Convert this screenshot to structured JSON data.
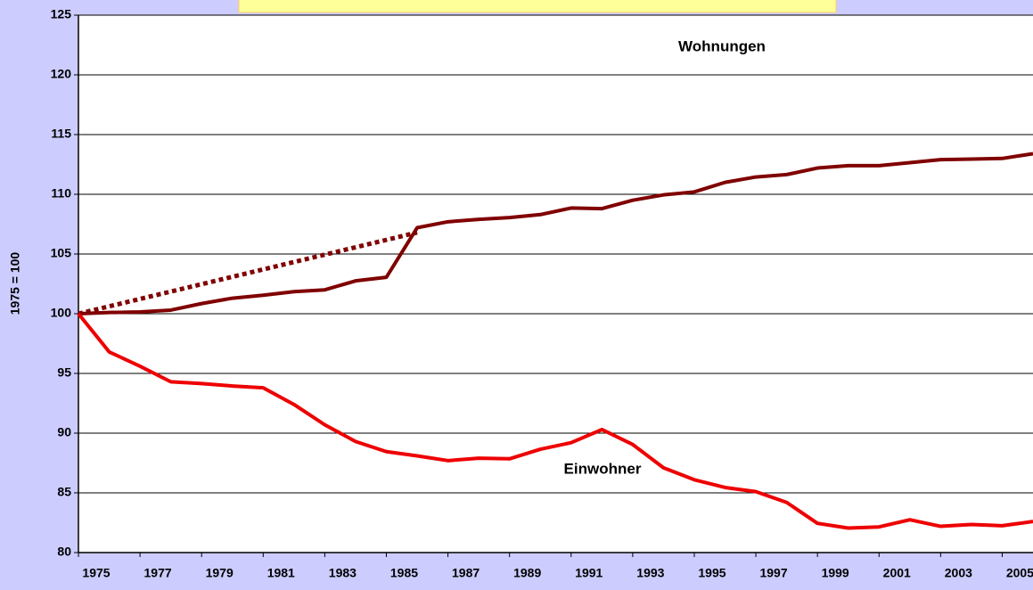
{
  "chart_data": {
    "type": "line",
    "ylabel": "1975 = 100",
    "annotations": [
      "Wohnungen",
      "Einwohner"
    ],
    "x": [
      1975,
      1976,
      1977,
      1978,
      1979,
      1980,
      1981,
      1982,
      1983,
      1984,
      1985,
      1986,
      1987,
      1988,
      1989,
      1990,
      1991,
      1992,
      1993,
      1994,
      1995,
      1996,
      1997,
      1998,
      1999,
      2000,
      2001,
      2002,
      2003,
      2004,
      2005,
      2006
    ],
    "series": [
      {
        "name": "Wohnungen",
        "color": "#800000",
        "values": [
          100,
          100.1,
          100.15,
          100.3,
          100.85,
          101.3,
          101.55,
          101.85,
          102.0,
          102.75,
          103.05,
          107.2,
          107.7,
          107.9,
          108.05,
          108.3,
          108.85,
          108.8,
          109.5,
          109.95,
          110.2,
          111.0,
          111.45,
          111.65,
          112.2,
          112.4,
          112.4,
          112.65,
          112.9,
          112.95,
          113.0,
          113.4
        ]
      },
      {
        "name": "Einwohner",
        "color": "#ee0000",
        "values": [
          100,
          96.8,
          95.6,
          94.3,
          94.15,
          93.95,
          93.8,
          92.4,
          90.7,
          89.3,
          88.45,
          88.1,
          87.7,
          87.9,
          87.85,
          88.65,
          89.2,
          90.3,
          89.05,
          87.1,
          86.1,
          85.45,
          85.1,
          84.2,
          82.45,
          82.05,
          82.15,
          82.75,
          82.2,
          82.35,
          82.25,
          82.6
        ]
      }
    ],
    "trend": {
      "color": "#800000",
      "x": [
        1975,
        1986
      ],
      "values": [
        100,
        106.8
      ]
    },
    "xlim": [
      1975,
      2006
    ],
    "xticks": [
      1975,
      1977,
      1979,
      1981,
      1983,
      1985,
      1987,
      1989,
      1991,
      1993,
      1995,
      1997,
      1999,
      2001,
      2003,
      2005
    ],
    "ylim": [
      80,
      125
    ],
    "yticks": [
      80,
      85,
      90,
      95,
      100,
      105,
      110,
      115,
      120,
      125
    ],
    "grid": true
  }
}
